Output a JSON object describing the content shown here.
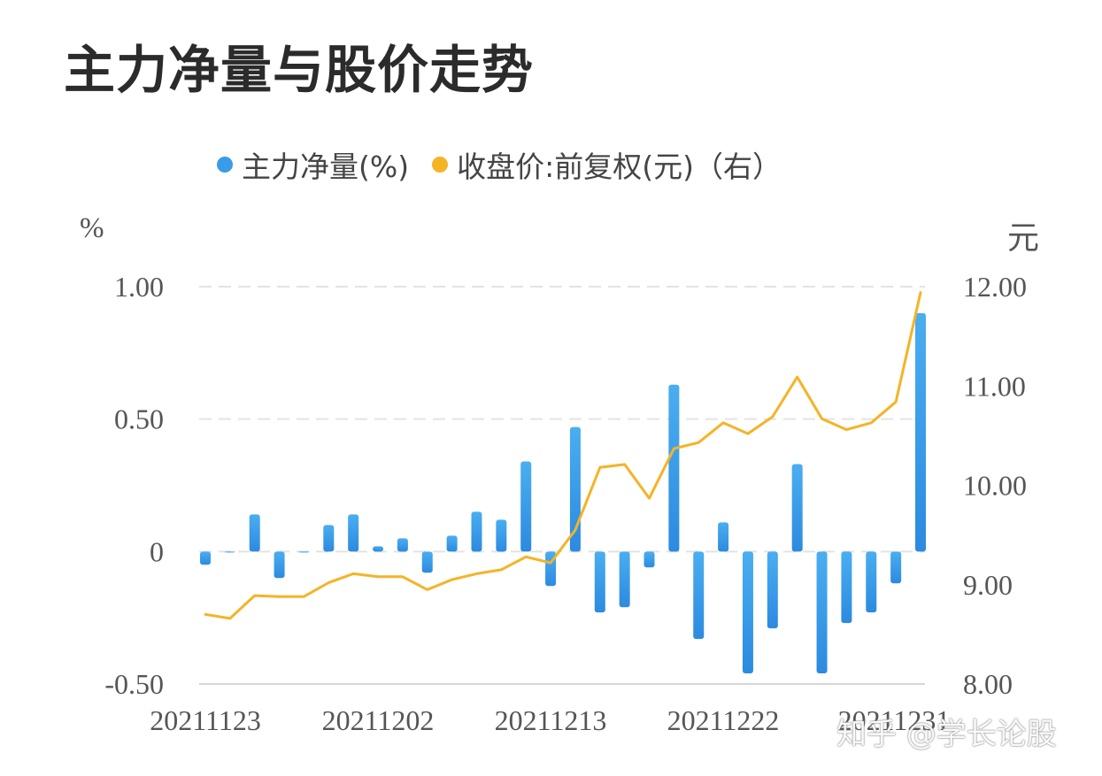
{
  "title": "主力净量与股价走势",
  "watermark": "知乎 @学长论股",
  "colors": {
    "bar": "#3a9be8",
    "line": "#f5b326",
    "grid": "#e3e3e3",
    "axis_text": "#555555"
  },
  "chart_data": {
    "type": "bar",
    "legend": [
      {
        "label": "主力净量(%)",
        "color": "#3a9be8"
      },
      {
        "label": "收盘价:前复权(元)（右）",
        "color": "#f5b326"
      }
    ],
    "left_axis_unit": "%",
    "right_axis_unit": "元",
    "left_ylim": [
      -0.5,
      1.0
    ],
    "right_ylim": [
      8.0,
      12.0
    ],
    "left_ticks": [
      {
        "v": 1.0,
        "label": "1.00"
      },
      {
        "v": 0.5,
        "label": "0.50"
      },
      {
        "v": 0,
        "label": "0"
      },
      {
        "v": -0.5,
        "label": "-0.50"
      }
    ],
    "right_ticks": [
      {
        "v": 12,
        "label": "12.00"
      },
      {
        "v": 11,
        "label": "11.00"
      },
      {
        "v": 10,
        "label": "10.00"
      },
      {
        "v": 9,
        "label": "9.00"
      },
      {
        "v": 8,
        "label": "8.00"
      }
    ],
    "x_tick_labels": [
      {
        "index": 0,
        "label": "20211123"
      },
      {
        "index": 7,
        "label": "20211202"
      },
      {
        "index": 14,
        "label": "20211213"
      },
      {
        "index": 21,
        "label": "20211222"
      },
      {
        "index": 29,
        "label": "20211231"
      }
    ],
    "series": [
      {
        "name": "主力净量(%)",
        "kind": "bar",
        "axis": "left",
        "values": [
          -0.05,
          0,
          0.14,
          -0.1,
          0,
          0.1,
          0.14,
          0.02,
          0.05,
          -0.08,
          0.06,
          0.15,
          0.12,
          0.34,
          -0.13,
          0.47,
          -0.23,
          -0.21,
          -0.06,
          0.63,
          -0.33,
          0.11,
          -0.46,
          -0.29,
          0.33,
          -0.46,
          -0.27,
          -0.23,
          -0.12,
          0.9
        ]
      },
      {
        "name": "收盘价:前复权(元)（右）",
        "kind": "line",
        "axis": "right",
        "values": [
          8.7,
          8.66,
          8.89,
          8.88,
          8.88,
          9.02,
          9.11,
          9.08,
          9.08,
          8.95,
          9.05,
          9.11,
          9.15,
          9.28,
          9.22,
          9.55,
          10.18,
          10.21,
          9.87,
          10.37,
          10.43,
          10.63,
          10.52,
          10.69,
          11.09,
          10.67,
          10.56,
          10.63,
          10.84,
          11.94
        ]
      }
    ]
  }
}
